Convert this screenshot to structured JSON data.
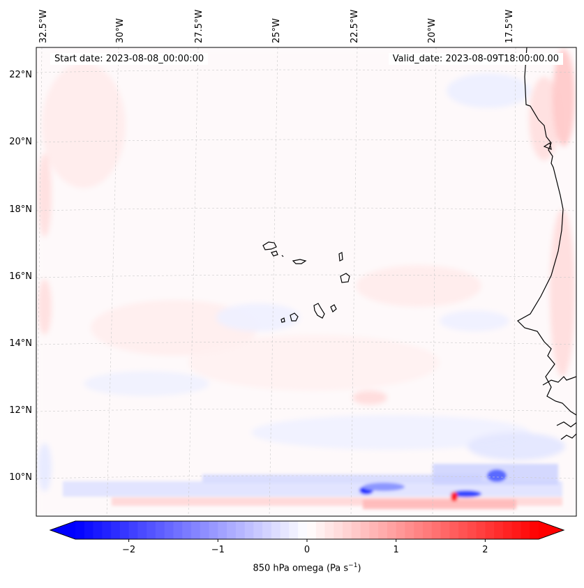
{
  "map": {
    "start_date_label": "Start date: 2023-08-08_00:00:00",
    "valid_date_label": "Valid_date: 2023-08-09T18:00:00.00",
    "lon_labels": [
      "32.5°W",
      "30°W",
      "27.5°W",
      "25°W",
      "22.5°W",
      "20°W",
      "17.5°W"
    ],
    "lat_labels": [
      "22°N",
      "20°N",
      "18°N",
      "16°N",
      "14°N",
      "12°N",
      "10°N"
    ],
    "extent": {
      "lon_min": -33.0,
      "lon_max": -15.5,
      "lat_min": 9.0,
      "lat_max": 22.8
    },
    "gridlines": true,
    "coastline_color": "#000000"
  },
  "colorbar": {
    "label_text": "850 hPa omega (Pa s",
    "label_exp": "−1",
    "label_close": ")",
    "ticks": [
      "−2",
      "−1",
      "0",
      "1",
      "2"
    ],
    "tick_values": [
      -2,
      -1,
      0,
      1,
      2
    ],
    "range": [
      -2.6,
      2.6
    ],
    "extend": "both",
    "colormap": "bwr",
    "color_low": "#0000ff",
    "color_mid": "#ffffff",
    "color_high": "#ff0000"
  },
  "chart_data": {
    "type": "heatmap",
    "variable": "850 hPa omega",
    "units": "Pa s^-1",
    "features": [
      {
        "feature": "southern-negative-band",
        "lat": 9.5,
        "lon_range": [
          -32,
          -15.5
        ],
        "value": -0.6
      },
      {
        "feature": "southern-positive-band",
        "lat": 9.2,
        "lon_range": [
          -28,
          -15.5
        ],
        "value": 0.4
      },
      {
        "feature": "blue-core-1",
        "lat": 9.6,
        "lon": -22.6,
        "value": -2.2
      },
      {
        "feature": "red-core",
        "lat": 9.3,
        "lon": -18.9,
        "value": 2.4
      },
      {
        "feature": "blue-core-2",
        "lat": 9.8,
        "lon": -18.5,
        "value": -1.6
      },
      {
        "feature": "coastal-positive",
        "lat": 21,
        "lon": -15.8,
        "value": 1.2
      }
    ]
  }
}
